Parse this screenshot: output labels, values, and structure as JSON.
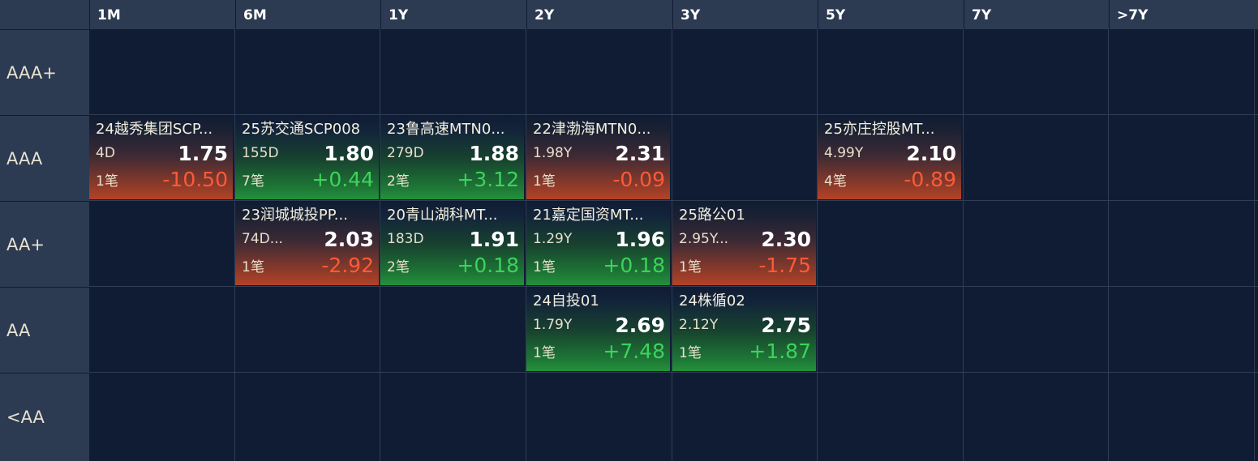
{
  "columns": [
    "1M",
    "6M",
    "1Y",
    "2Y",
    "3Y",
    "5Y",
    "7Y",
    ">7Y"
  ],
  "rows": [
    "AAA+",
    "AAA",
    "AA+",
    "AA",
    "<AA"
  ],
  "cells": [
    {
      "row": 1,
      "col": 0,
      "name": "24越秀集团SCP...",
      "tenor": "4D",
      "yield": "1.75",
      "trades": "1笔",
      "change": "-10.50",
      "trend": "down",
      "color": "#ff5a36"
    },
    {
      "row": 1,
      "col": 1,
      "name": "25苏交通SCP008",
      "tenor": "155D",
      "yield": "1.80",
      "trades": "7笔",
      "change": "+0.44",
      "trend": "up",
      "color": "#3bd45a"
    },
    {
      "row": 1,
      "col": 2,
      "name": "23鲁高速MTN0...",
      "tenor": "279D",
      "yield": "1.88",
      "trades": "2笔",
      "change": "+3.12",
      "trend": "up",
      "color": "#3bd45a"
    },
    {
      "row": 1,
      "col": 3,
      "name": "22津渤海MTN0...",
      "tenor": "1.98Y",
      "yield": "2.31",
      "trades": "1笔",
      "change": "-0.09",
      "trend": "down",
      "color": "#ff5a36"
    },
    {
      "row": 1,
      "col": 5,
      "name": "25亦庄控股MT...",
      "tenor": "4.99Y",
      "yield": "2.10",
      "trades": "4笔",
      "change": "-0.89",
      "trend": "down",
      "color": "#ff5a36"
    },
    {
      "row": 2,
      "col": 1,
      "name": "23润城城投PP...",
      "tenor": "74D...",
      "yield": "2.03",
      "trades": "1笔",
      "change": "-2.92",
      "trend": "down",
      "color": "#ff5a36"
    },
    {
      "row": 2,
      "col": 2,
      "name": "20青山湖科MT...",
      "tenor": "183D",
      "yield": "1.91",
      "trades": "2笔",
      "change": "+0.18",
      "trend": "up",
      "color": "#3bd45a"
    },
    {
      "row": 2,
      "col": 3,
      "name": "21嘉定国资MT...",
      "tenor": "1.29Y",
      "yield": "1.96",
      "trades": "1笔",
      "change": "+0.18",
      "trend": "up",
      "color": "#3bd45a"
    },
    {
      "row": 2,
      "col": 4,
      "name": "25路公01",
      "tenor": "2.95Y...",
      "yield": "2.30",
      "trades": "1笔",
      "change": "-1.75",
      "trend": "down",
      "color": "#ff5a36"
    },
    {
      "row": 3,
      "col": 3,
      "name": "24自投01",
      "tenor": "1.79Y",
      "yield": "2.69",
      "trades": "1笔",
      "change": "+7.48",
      "trend": "up",
      "color": "#3bd45a"
    },
    {
      "row": 3,
      "col": 4,
      "name": "24株循02",
      "tenor": "2.12Y",
      "yield": "2.75",
      "trades": "1笔",
      "change": "+1.87",
      "trend": "up",
      "color": "#3bd45a"
    }
  ]
}
